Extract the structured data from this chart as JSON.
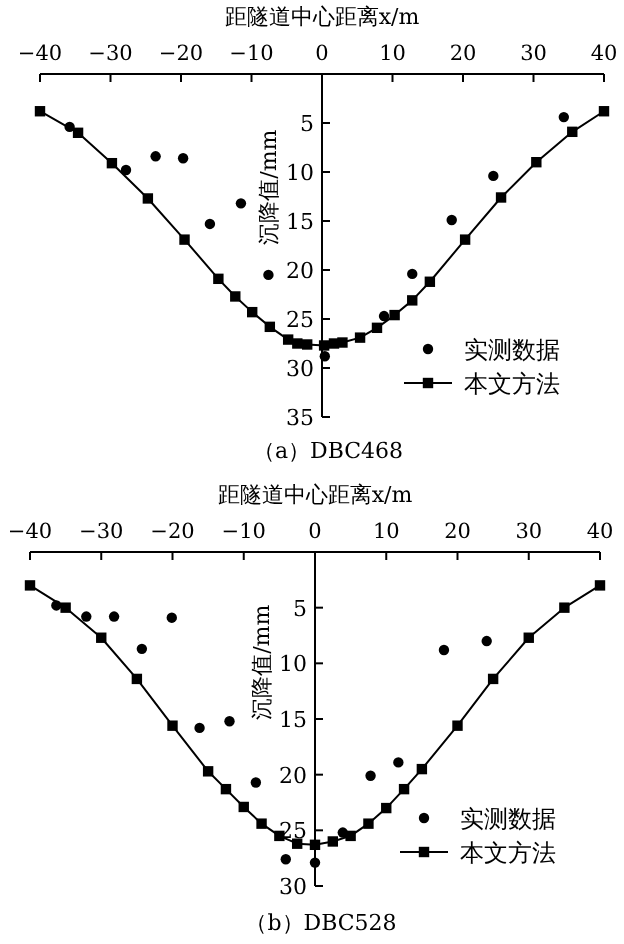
{
  "chart_data": [
    {
      "type": "line",
      "xlabel": "距隧道中心距离x/m",
      "ylabel": "沉降值/mm",
      "xlim": [
        -40,
        40
      ],
      "xticks": [
        -40,
        -30,
        -20,
        -10,
        0,
        10,
        20,
        30,
        40
      ],
      "ylim": [
        35,
        0
      ],
      "yticks": [
        5,
        10,
        15,
        20,
        25,
        30,
        35
      ],
      "grid": false,
      "legend": "bottom right",
      "annotations": [
        "（a）DBC468"
      ],
      "series": [
        {
          "name": "实测数据",
          "type": "scatter",
          "marker": "circle",
          "color": "#000000",
          "x": [
            -35.8,
            -27.8,
            -23.6,
            -19.7,
            -15.9,
            -11.5,
            -7.6,
            0.4,
            8.8,
            12.8,
            18.4,
            24.3,
            34.3
          ],
          "values": [
            5.4,
            9.8,
            8.4,
            8.6,
            15.3,
            13.2,
            20.5,
            28.8,
            24.7,
            20.4,
            14.9,
            10.4,
            4.4
          ]
        },
        {
          "name": "本文方法",
          "type": "line",
          "marker": "square",
          "color": "#000000",
          "x": [
            -40,
            -34.6,
            -29.8,
            -24.7,
            -19.5,
            -14.7,
            -12.3,
            -9.9,
            -7.4,
            -4.8,
            -3.5,
            -2.1,
            0.3,
            1.7,
            2.9,
            5.4,
            7.8,
            10.3,
            12.8,
            15.3,
            20.3,
            25.4,
            30.4,
            35.5,
            40
          ],
          "values": [
            3.8,
            6.0,
            9.1,
            12.7,
            16.9,
            20.9,
            22.7,
            24.3,
            25.8,
            27.1,
            27.5,
            27.6,
            27.7,
            27.5,
            27.4,
            26.9,
            25.9,
            24.6,
            23.1,
            21.2,
            16.9,
            12.6,
            9.0,
            5.9,
            3.8
          ]
        }
      ]
    },
    {
      "type": "line",
      "xlabel": "距隧道中心距离x/m",
      "ylabel": "沉降值/mm",
      "xlim": [
        -40,
        40
      ],
      "xticks": [
        -40,
        -30,
        -20,
        -10,
        0,
        10,
        20,
        30,
        40
      ],
      "ylim": [
        30,
        0
      ],
      "yticks": [
        5,
        10,
        15,
        20,
        25,
        30
      ],
      "grid": false,
      "legend": "bottom right",
      "annotations": [
        "（b）DBC528"
      ],
      "series": [
        {
          "name": "实测数据",
          "type": "scatter",
          "marker": "circle",
          "color": "#000000",
          "x": [
            -36.3,
            -32.1,
            -28.2,
            -24.3,
            -20.1,
            -16.2,
            -12.0,
            -8.3,
            -4.1,
            0,
            3.9,
            7.8,
            11.7,
            18.1,
            24.1
          ],
          "values": [
            4.8,
            5.8,
            5.8,
            8.7,
            5.9,
            15.8,
            15.2,
            20.7,
            27.6,
            27.9,
            25.2,
            20.1,
            18.9,
            8.8,
            8.0
          ]
        },
        {
          "name": "本文方法",
          "type": "line",
          "marker": "square",
          "color": "#000000",
          "x": [
            -40,
            -35,
            -30,
            -25,
            -20,
            -15,
            -12.5,
            -10,
            -7.5,
            -5,
            -2.5,
            0,
            2.5,
            5,
            7.5,
            10,
            12.5,
            15,
            20,
            25,
            30,
            35,
            40
          ],
          "values": [
            3.0,
            5.0,
            7.7,
            11.4,
            15.6,
            19.7,
            21.3,
            22.9,
            24.4,
            25.5,
            26.2,
            26.3,
            26.0,
            25.5,
            24.4,
            23.0,
            21.3,
            19.5,
            15.6,
            11.4,
            7.7,
            5.0,
            3.0
          ]
        }
      ]
    }
  ]
}
